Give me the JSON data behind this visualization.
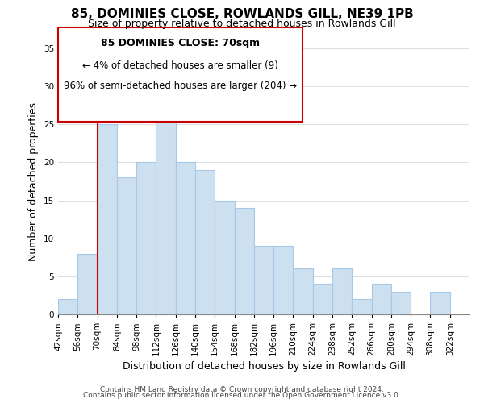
{
  "title": "85, DOMINIES CLOSE, ROWLANDS GILL, NE39 1PB",
  "subtitle": "Size of property relative to detached houses in Rowlands Gill",
  "xlabel": "Distribution of detached houses by size in Rowlands Gill",
  "ylabel": "Number of detached properties",
  "footer_line1": "Contains HM Land Registry data © Crown copyright and database right 2024.",
  "footer_line2": "Contains public sector information licensed under the Open Government Licence v3.0.",
  "annotation_title": "85 DOMINIES CLOSE: 70sqm",
  "annotation_line1": "← 4% of detached houses are smaller (9)",
  "annotation_line2": "96% of semi-detached houses are larger (204) →",
  "marker_value": 70,
  "bar_edges": [
    42,
    56,
    70,
    84,
    98,
    112,
    126,
    140,
    154,
    168,
    182,
    196,
    210,
    224,
    238,
    252,
    266,
    280,
    294,
    308,
    322
  ],
  "bar_heights": [
    2,
    8,
    25,
    18,
    20,
    27,
    20,
    19,
    15,
    14,
    9,
    9,
    6,
    4,
    6,
    2,
    4,
    3,
    0,
    3
  ],
  "bar_color": "#cce0f0",
  "bar_edgecolor": "#a8c8e8",
  "marker_color": "#cc0000",
  "annotation_box_edgecolor": "#cc0000",
  "annotation_box_facecolor": "#ffffff",
  "ylim": [
    0,
    35
  ],
  "yticks": [
    0,
    5,
    10,
    15,
    20,
    25,
    30,
    35
  ],
  "background_color": "#ffffff",
  "grid_color": "#dddddd",
  "title_fontsize": 11,
  "subtitle_fontsize": 9,
  "axis_label_fontsize": 9,
  "tick_fontsize": 7.5,
  "annotation_title_fontsize": 9,
  "annotation_fontsize": 8.5,
  "footer_fontsize": 6.5
}
